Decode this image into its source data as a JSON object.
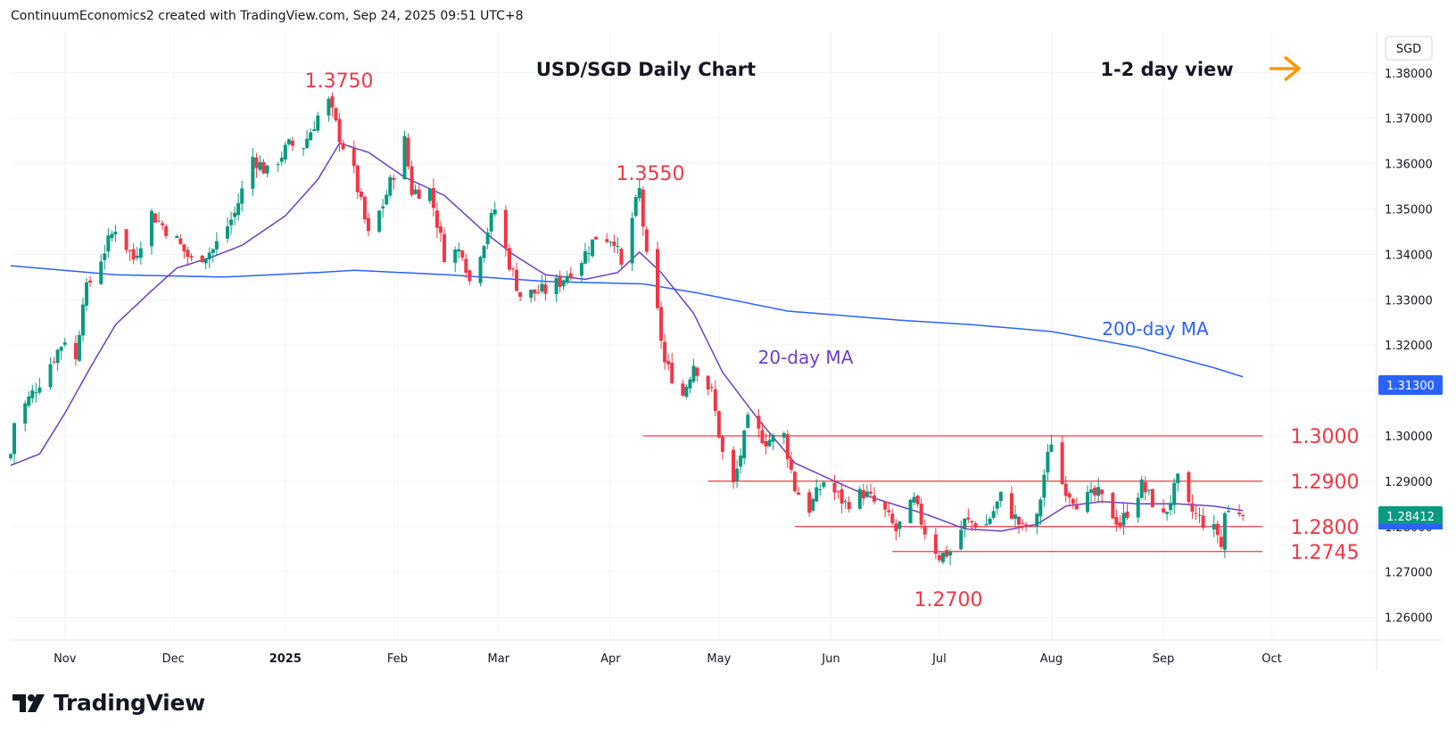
{
  "header": {
    "credit": "ContinuumEconomics2 created with TradingView.com, Sep 24, 2025 09:51 UTC+8"
  },
  "branding": {
    "logo_text": "TradingView",
    "logo_icon": "tradingview-logo-icon"
  },
  "chart_data": {
    "type": "candlestick",
    "title": "USD/SGD Daily Chart",
    "view_label": "1-2 day view",
    "view_icon": "right-arrow-icon",
    "currency": "SGD",
    "ylim": [
      1.255,
      1.389
    ],
    "y_ticks": [
      "1.38000",
      "1.37000",
      "1.36000",
      "1.35000",
      "1.34000",
      "1.33000",
      "1.32000",
      "1.31000",
      "1.30000",
      "1.29000",
      "1.28000",
      "1.27000",
      "1.26000"
    ],
    "x_ticks": [
      "Nov",
      "Dec",
      "2025",
      "Feb",
      "Mar",
      "Apr",
      "May",
      "Jun",
      "Jul",
      "Aug",
      "Sep",
      "Oct"
    ],
    "last_price": "1.28412",
    "ma200_price": "1.31300",
    "colors": {
      "up": "#089981",
      "down": "#f23645",
      "ma20": "#6a3fc6",
      "ma200": "#2962ff",
      "annotation": "#f23645",
      "arrow": "#ff9800"
    },
    "annotations": {
      "high_1": "1.3750",
      "high_2": "1.3550",
      "low_1": "1.2700",
      "ma20_label": "20-day MA",
      "ma200_label": "200-day MA"
    },
    "levels": [
      {
        "label": "1.3000",
        "value": 1.3
      },
      {
        "label": "1.2900",
        "value": 1.29
      },
      {
        "label": "1.2800",
        "value": 1.28
      },
      {
        "label": "1.2745",
        "value": 1.2745
      }
    ],
    "anchors": [
      [
        "2024-10-17",
        1.296
      ],
      [
        "2024-10-18",
        1.303
      ],
      [
        "2024-10-25",
        1.312
      ],
      [
        "2024-11-01",
        1.3215
      ],
      [
        "2024-11-04",
        1.3165
      ],
      [
        "2024-11-06",
        1.3305
      ],
      [
        "2024-11-12",
        1.341
      ],
      [
        "2024-11-15",
        1.346
      ],
      [
        "2024-11-20",
        1.339
      ],
      [
        "2024-11-25",
        1.349
      ],
      [
        "2024-12-02",
        1.343
      ],
      [
        "2024-12-06",
        1.3385
      ],
      [
        "2024-12-12",
        1.341
      ],
      [
        "2024-12-18",
        1.349
      ],
      [
        "2024-12-23",
        1.3615
      ],
      [
        "2024-12-27",
        1.358
      ],
      [
        "2025-01-02",
        1.364
      ],
      [
        "2025-01-06",
        1.364
      ],
      [
        "2025-01-10",
        1.3705
      ],
      [
        "2025-01-13",
        1.3735
      ],
      [
        "2025-01-16",
        1.366
      ],
      [
        "2025-01-20",
        1.358
      ],
      [
        "2025-01-24",
        1.344
      ],
      [
        "2025-01-28",
        1.351
      ],
      [
        "2025-02-03",
        1.365
      ],
      [
        "2025-02-05",
        1.354
      ],
      [
        "2025-02-10",
        1.354
      ],
      [
        "2025-02-14",
        1.34
      ],
      [
        "2025-02-19",
        1.341
      ],
      [
        "2025-02-21",
        1.334
      ],
      [
        "2025-02-26",
        1.3455
      ],
      [
        "2025-02-28",
        1.35
      ],
      [
        "2025-03-04",
        1.338
      ],
      [
        "2025-03-07",
        1.331
      ],
      [
        "2025-03-14",
        1.332
      ],
      [
        "2025-03-18",
        1.334
      ],
      [
        "2025-03-24",
        1.339
      ],
      [
        "2025-03-28",
        1.344
      ],
      [
        "2025-04-02",
        1.3435
      ],
      [
        "2025-04-04",
        1.337
      ],
      [
        "2025-04-07",
        1.348
      ],
      [
        "2025-04-09",
        1.354
      ],
      [
        "2025-04-11",
        1.339
      ],
      [
        "2025-04-14",
        1.327
      ],
      [
        "2025-04-16",
        1.316
      ],
      [
        "2025-04-21",
        1.309
      ],
      [
        "2025-04-24",
        1.316
      ],
      [
        "2025-04-29",
        1.3095
      ],
      [
        "2025-05-02",
        1.296
      ],
      [
        "2025-05-05",
        1.289
      ],
      [
        "2025-05-09",
        1.303
      ],
      [
        "2025-05-14",
        1.299
      ],
      [
        "2025-05-19",
        1.3
      ],
      [
        "2025-05-22",
        1.2885
      ],
      [
        "2025-05-26",
        1.284
      ],
      [
        "2025-05-30",
        1.29
      ],
      [
        "2025-06-05",
        1.285
      ],
      [
        "2025-06-10",
        1.2875
      ],
      [
        "2025-06-16",
        1.283
      ],
      [
        "2025-06-19",
        1.279
      ],
      [
        "2025-06-24",
        1.2855
      ],
      [
        "2025-06-27",
        1.279
      ],
      [
        "2025-07-01",
        1.2735
      ],
      [
        "2025-07-04",
        1.2745
      ],
      [
        "2025-07-08",
        1.281
      ],
      [
        "2025-07-14",
        1.2805
      ],
      [
        "2025-07-18",
        1.2865
      ],
      [
        "2025-07-24",
        1.2795
      ],
      [
        "2025-07-28",
        1.2815
      ],
      [
        "2025-07-30",
        1.2915
      ],
      [
        "2025-08-01",
        1.299
      ],
      [
        "2025-08-04",
        1.2895
      ],
      [
        "2025-08-08",
        1.2855
      ],
      [
        "2025-08-14",
        1.287
      ],
      [
        "2025-08-20",
        1.2805
      ],
      [
        "2025-08-26",
        1.289
      ],
      [
        "2025-09-01",
        1.282
      ],
      [
        "2025-09-05",
        1.29
      ],
      [
        "2025-09-08",
        1.284
      ],
      [
        "2025-09-12",
        1.281
      ],
      [
        "2025-09-16",
        1.2785
      ],
      [
        "2025-09-17",
        1.2755
      ],
      [
        "2025-09-18",
        1.283
      ],
      [
        "2025-09-22",
        1.2835
      ],
      [
        "2025-09-23",
        1.2841
      ]
    ],
    "ma20_anchors": [
      [
        "2024-10-17",
        1.2935
      ],
      [
        "2024-10-25",
        1.296
      ],
      [
        "2024-11-01",
        1.305
      ],
      [
        "2024-11-08",
        1.315
      ],
      [
        "2024-11-15",
        1.3245
      ],
      [
        "2024-11-25",
        1.332
      ],
      [
        "2024-12-02",
        1.337
      ],
      [
        "2024-12-12",
        1.3395
      ],
      [
        "2024-12-20",
        1.342
      ],
      [
        "2025-01-01",
        1.3485
      ],
      [
        "2025-01-10",
        1.3565
      ],
      [
        "2025-01-16",
        1.3645
      ],
      [
        "2025-01-24",
        1.3625
      ],
      [
        "2025-02-03",
        1.357
      ],
      [
        "2025-02-14",
        1.353
      ],
      [
        "2025-02-25",
        1.345
      ],
      [
        "2025-03-05",
        1.34
      ],
      [
        "2025-03-14",
        1.3355
      ],
      [
        "2025-03-25",
        1.3345
      ],
      [
        "2025-04-03",
        1.336
      ],
      [
        "2025-04-09",
        1.3405
      ],
      [
        "2025-04-15",
        1.336
      ],
      [
        "2025-04-24",
        1.327
      ],
      [
        "2025-05-02",
        1.314
      ],
      [
        "2025-05-12",
        1.3035
      ],
      [
        "2025-05-22",
        1.294
      ],
      [
        "2025-06-02",
        1.29
      ],
      [
        "2025-06-12",
        1.2865
      ],
      [
        "2025-06-20",
        1.2845
      ],
      [
        "2025-06-28",
        1.2825
      ],
      [
        "2025-07-08",
        1.2795
      ],
      [
        "2025-07-18",
        1.279
      ],
      [
        "2025-07-28",
        1.2805
      ],
      [
        "2025-08-05",
        1.2845
      ],
      [
        "2025-08-15",
        1.2855
      ],
      [
        "2025-08-25",
        1.285
      ],
      [
        "2025-09-05",
        1.285
      ],
      [
        "2025-09-15",
        1.2845
      ],
      [
        "2025-09-23",
        1.2835
      ]
    ],
    "ma200_anchors": [
      [
        "2024-10-17",
        1.3375
      ],
      [
        "2024-11-15",
        1.3355
      ],
      [
        "2024-12-15",
        1.335
      ],
      [
        "2025-01-10",
        1.336
      ],
      [
        "2025-01-20",
        1.3365
      ],
      [
        "2025-02-15",
        1.3355
      ],
      [
        "2025-03-15",
        1.334
      ],
      [
        "2025-04-10",
        1.3335
      ],
      [
        "2025-04-25",
        1.3315
      ],
      [
        "2025-05-20",
        1.3275
      ],
      [
        "2025-06-20",
        1.3255
      ],
      [
        "2025-07-10",
        1.3245
      ],
      [
        "2025-08-01",
        1.323
      ],
      [
        "2025-08-25",
        1.3195
      ],
      [
        "2025-09-15",
        1.315
      ],
      [
        "2025-09-23",
        1.313
      ]
    ]
  }
}
